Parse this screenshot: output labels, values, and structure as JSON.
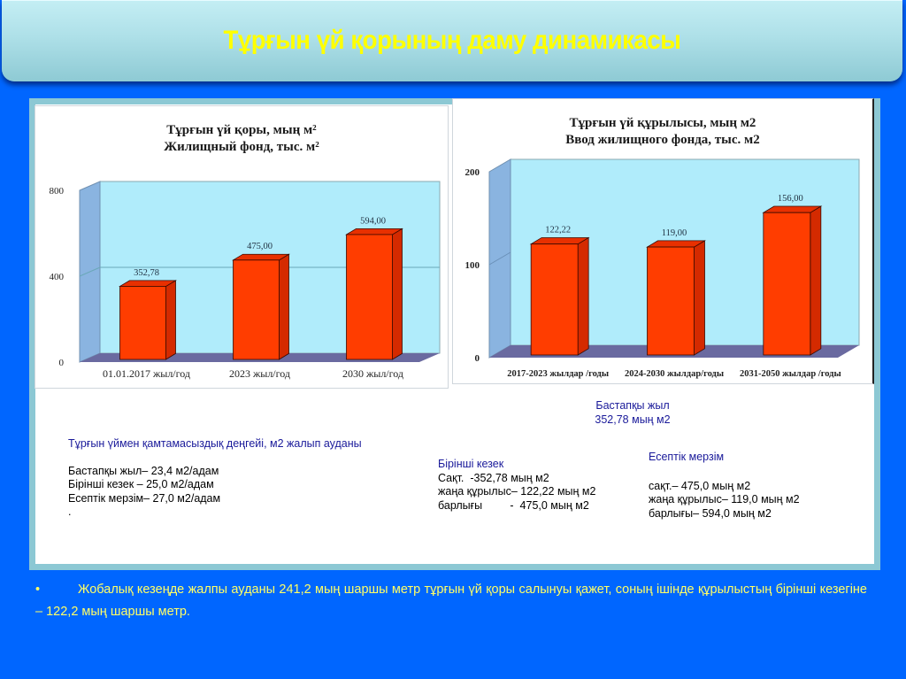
{
  "header": {
    "title": "Тұрғын үй қорының даму динамикасы"
  },
  "colors": {
    "background": "#0066ff",
    "title_text": "#ffff00",
    "bar_front": "#ff3d00",
    "bar_side": "#d42a00",
    "plot_back": "#b0ecfb",
    "plot_wall": "#8ab4e0",
    "plot_floor": "#6a6aa0",
    "note_heading": "#1a1a9a",
    "bottom_text": "#ffff66"
  },
  "chart_data": [
    {
      "type": "bar",
      "title": "Тұрғын үй қоры, мың м²",
      "subtitle": "Жилищный фонд, тыс. м²",
      "categories": [
        "01.01.2017 жыл/год",
        "2023 жыл/год",
        "2030 жыл/год"
      ],
      "values": [
        352.78,
        475.0,
        594.0
      ],
      "value_labels": [
        "352,78",
        "475,00",
        "594,00"
      ],
      "yticks": [
        0,
        400,
        800
      ],
      "ytick_labels": [
        "0",
        "400",
        "800"
      ],
      "ylim": [
        0,
        800
      ],
      "grid": true,
      "xlabel": "",
      "ylabel": ""
    },
    {
      "type": "bar",
      "title": "Тұрғын үй құрылысы, мың м2",
      "subtitle": "Ввод жилищного фонда, тыс. м2",
      "categories": [
        "2017-2023 жылдар /годы",
        "2024-2030 жылдар/годы",
        "2031-2050 жылдар /годы"
      ],
      "values": [
        122.22,
        119.0,
        156.0
      ],
      "value_labels": [
        "122,22",
        "119,00",
        "156,00"
      ],
      "yticks": [
        0,
        100,
        200
      ],
      "ytick_labels": [
        "0",
        "100",
        "200"
      ],
      "ylim": [
        0,
        200
      ],
      "grid": false,
      "xlabel": "",
      "ylabel": ""
    }
  ],
  "notes": {
    "provision": {
      "heading": "Тұрғын үймен қамтамасыздық деңгейі, м2 жалып ауданы",
      "lines": [
        "Бастапқы жыл– 23,4 м2/адам",
        "Бірінші кезек – 25,0 м2/адам",
        "Есептік мерзім– 27,0 м2/адам",
        "."
      ]
    },
    "base_year": {
      "line1": "Бастапқы жыл",
      "line2": "352,78 мың м2"
    },
    "first_stage": {
      "heading": "Бірінші кезек",
      "lines": [
        "Сақт.  -352,78 мың м2",
        "жаңа құрылыс– 122,22 мың м2",
        "барлығы         -  475,0 мың м2"
      ]
    },
    "estimated_term": {
      "heading": "Есептік мерзім",
      "lines": [
        "сақт.– 475,0 мың м2",
        "жаңа құрылыс– 119,0 мың м2",
        "барлығы– 594,0 мың м2"
      ]
    }
  },
  "bottom": {
    "bullet": "•",
    "text": "Жобалық кезеңде жалпы ауданы 241,2 мың шаршы метр тұрғын үй қоры салынуы қажет, соның ішінде құрылыстың бірінші кезегіне – 122,2 мың шаршы метр."
  }
}
